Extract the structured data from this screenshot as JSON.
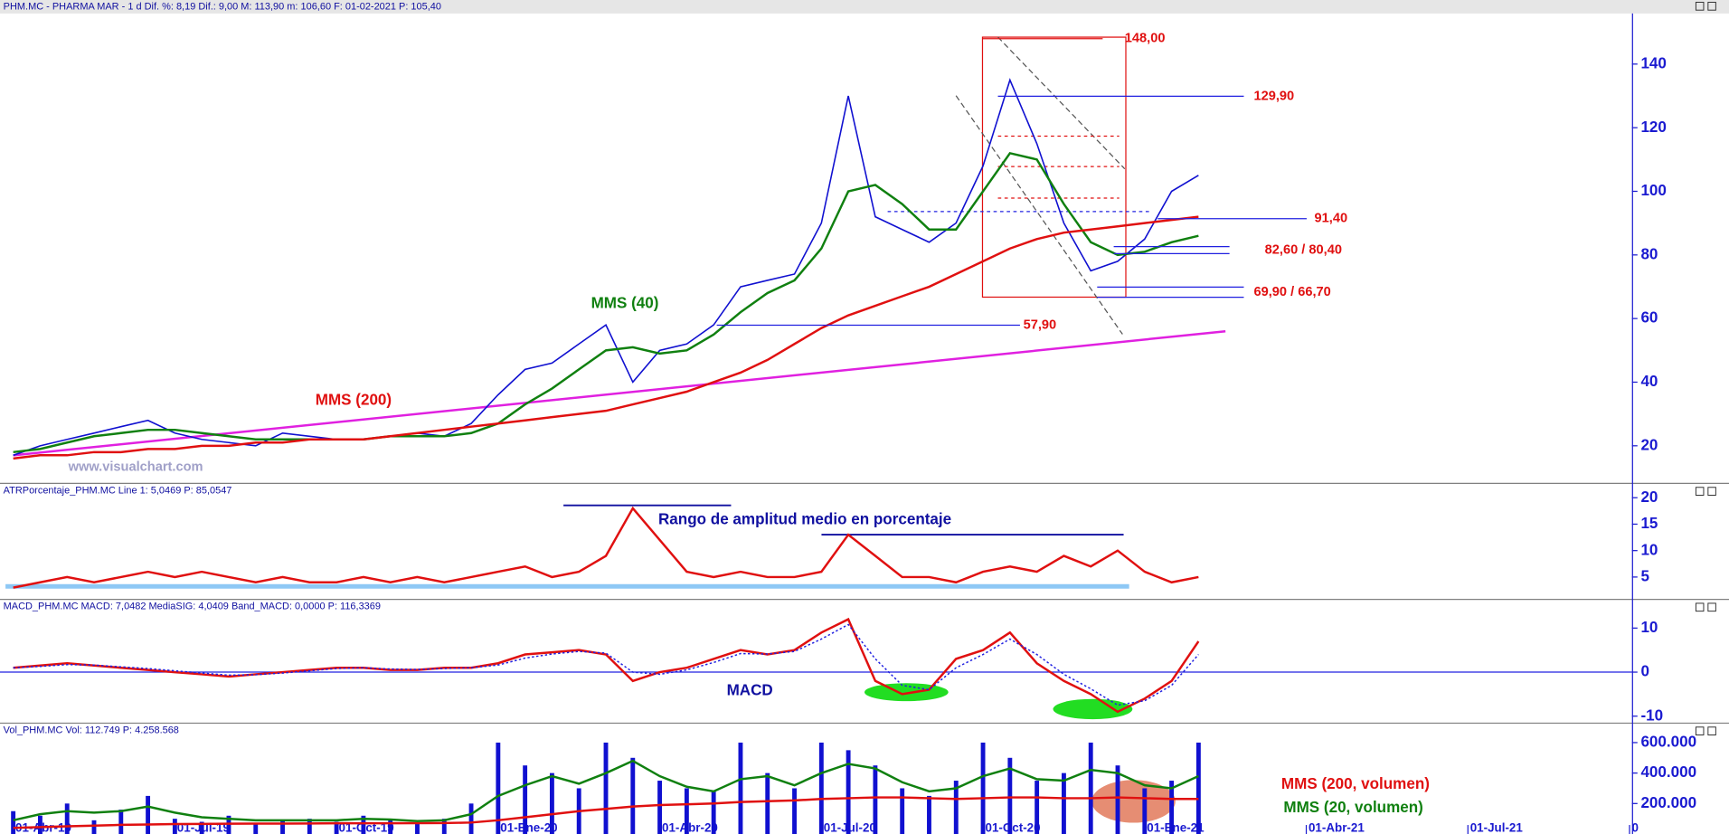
{
  "chart_data": [
    {
      "type": "line",
      "title": "PHM.MC - PHARMA MAR - 1 d Dif. %: 8,19 Dif.: 9,00 M: 113,90 m: 106,60 F: 01-02-2021 P: 105,40",
      "categories": [
        "01-Abr-19",
        null,
        null,
        null,
        null,
        null,
        "01-Jul-19",
        null,
        null,
        null,
        null,
        null,
        "01-Oct-19",
        null,
        null,
        null,
        null,
        null,
        "01-Ene-20",
        null,
        null,
        null,
        null,
        null,
        "01-Abr-20",
        null,
        null,
        null,
        null,
        null,
        "01-Jul-20",
        null,
        null,
        null,
        null,
        null,
        "01-Oct-20",
        null,
        null,
        null,
        null,
        null,
        "01-Ene-21",
        null,
        null,
        null,
        null,
        null,
        "01-Abr-21",
        null,
        null,
        null,
        null,
        null,
        "01-Jul-21",
        null,
        null,
        null,
        null,
        null,
        "0"
      ],
      "ylim": [
        8.7,
        155.9
      ],
      "yticks": [
        20,
        40,
        60,
        80,
        100,
        120,
        140
      ],
      "series": [
        {
          "color": "#1010d0",
          "values": [
            17,
            20,
            22,
            24,
            26,
            28,
            24,
            22,
            21,
            20,
            24,
            23,
            22,
            22,
            23,
            24,
            23,
            27,
            36,
            44,
            46,
            52,
            58,
            40,
            50,
            52,
            58,
            70,
            72,
            74,
            90,
            130,
            92,
            88,
            84,
            90,
            108,
            135,
            115,
            90,
            75,
            78,
            85,
            100,
            105,
            null,
            null,
            null,
            null,
            null,
            null,
            null,
            null,
            null,
            null,
            null,
            null,
            null,
            null,
            null,
            null
          ]
        },
        {
          "name": "MMS (40)",
          "color": "#108010",
          "values": [
            18,
            19,
            21,
            23,
            24,
            25,
            25,
            24,
            23,
            22,
            22,
            22,
            22,
            22,
            23,
            23,
            23,
            24,
            27,
            33,
            38,
            44,
            50,
            51,
            49,
            50,
            55,
            62,
            68,
            72,
            82,
            100,
            102,
            96,
            88,
            88,
            100,
            112,
            110,
            96,
            84,
            80,
            81,
            84,
            86,
            null,
            null,
            null,
            null,
            null,
            null,
            null,
            null,
            null,
            null,
            null,
            null,
            null,
            null,
            null,
            null
          ]
        },
        {
          "name": "MMS (200)",
          "color": "#e01010",
          "values": [
            16,
            17,
            17,
            18,
            18,
            19,
            19,
            20,
            20,
            21,
            21,
            22,
            22,
            22,
            23,
            24,
            25,
            26,
            27,
            28,
            29,
            30,
            31,
            33,
            35,
            37,
            40,
            43,
            47,
            52,
            57,
            61,
            64,
            67,
            70,
            74,
            78,
            82,
            85,
            87,
            88,
            89,
            90,
            91,
            92,
            null,
            null,
            null,
            null,
            null,
            null,
            null,
            null,
            null,
            null,
            null,
            null,
            null,
            null,
            null,
            null
          ]
        }
      ],
      "trendline": {
        "color": "#e020e0",
        "values": [
          17,
          56
        ]
      },
      "levels": [
        {
          "values": [
            148
          ],
          "label": "148,00"
        },
        {
          "values": [
            129.9
          ],
          "label": "129,90"
        },
        {
          "values": [
            91.4
          ],
          "label": "91,40"
        },
        {
          "values": [
            82.6,
            80.4
          ],
          "label": "82,60 / 80,40"
        },
        {
          "values": [
            69.9,
            66.7
          ],
          "label": "69,90 / 66,70"
        },
        {
          "values": [
            57.9
          ],
          "label": "57,90"
        }
      ],
      "watermark": "www.visualchart.com"
    },
    {
      "type": "line",
      "title": "ATRPorcentaje_PHM.MC Line 1: 5,0469 P: 85,0547",
      "annotation": "Rango de amplitud medio en porcentaje",
      "ylim": [
        1.1,
        22.6
      ],
      "yticks": [
        5,
        10,
        15,
        20
      ],
      "series": [
        {
          "color": "#e01010",
          "values": [
            3,
            4,
            5,
            4,
            5,
            6,
            5,
            6,
            5,
            4,
            5,
            4,
            4,
            5,
            4,
            5,
            4,
            5,
            6,
            7,
            5,
            6,
            9,
            18,
            12,
            6,
            5,
            6,
            5,
            5,
            6,
            13,
            9,
            5,
            5,
            4,
            6,
            7,
            6,
            9,
            7,
            10,
            6,
            4,
            5,
            null,
            null,
            null,
            null,
            null,
            null,
            null,
            null,
            null,
            null,
            null,
            null,
            null,
            null,
            null,
            null
          ]
        }
      ]
    },
    {
      "type": "line",
      "title": "MACD_PHM.MC MACD: 7,0482 MediaSIG: 4,0409 Band_MACD: 0,0000 P: 116,3369",
      "annotation": "MACD",
      "ylim": [
        -11.2,
        16.4
      ],
      "yticks": [
        10,
        0,
        -10
      ],
      "baseline": 0,
      "series": [
        {
          "color": "#e01010",
          "values": [
            1,
            1.5,
            2,
            1.5,
            1,
            0.5,
            0,
            -0.5,
            -1,
            -0.5,
            0,
            0.5,
            1,
            1,
            0.5,
            0.5,
            1,
            1,
            2,
            4,
            4.5,
            5,
            4,
            -2,
            0,
            1,
            3,
            5,
            4,
            5,
            9,
            12,
            -2,
            -5,
            -4,
            3,
            5,
            9,
            2,
            -2,
            -5,
            -9,
            -6,
            -2,
            7,
            null,
            null,
            null,
            null,
            null,
            null,
            null,
            null,
            null,
            null,
            null,
            null,
            null,
            null,
            null,
            null
          ]
        },
        {
          "color": "#2020e0",
          "dash": true,
          "values": [
            1,
            1.3,
            1.7,
            1.6,
            1.2,
            0.8,
            0.3,
            -0.2,
            -0.7,
            -0.6,
            -0.2,
            0.3,
            0.8,
            1,
            0.7,
            0.6,
            0.8,
            1,
            1.6,
            3.2,
            4.1,
            4.7,
            4.3,
            0,
            -0.5,
            0.5,
            2.2,
            4.2,
            4.1,
            4.7,
            7.5,
            10.8,
            3,
            -3,
            -4,
            1,
            4,
            7.5,
            4,
            -0.5,
            -3.8,
            -7.5,
            -6.5,
            -3,
            4,
            null,
            null,
            null,
            null,
            null,
            null,
            null,
            null,
            null,
            null,
            null,
            null,
            null,
            null,
            null,
            null
          ]
        }
      ]
    },
    {
      "type": "bar",
      "title": "Vol_PHM.MC Vol: 112.749 P: 4.258.568",
      "ylim": [
        0,
        724000
      ],
      "yticks": [
        {
          "value": 600000,
          "label": "600.000"
        },
        {
          "value": 400000,
          "label": "400.000"
        },
        {
          "value": 200000,
          "label": "200.000"
        }
      ],
      "series": [
        {
          "type": "bar",
          "color": "#1010d0",
          "values": [
            150000,
            120000,
            200000,
            90000,
            160000,
            250000,
            100000,
            80000,
            120000,
            70000,
            90000,
            100000,
            80000,
            120000,
            90000,
            70000,
            100000,
            200000,
            600000,
            450000,
            400000,
            300000,
            600000,
            500000,
            350000,
            300000,
            280000,
            600000,
            400000,
            300000,
            600000,
            550000,
            450000,
            300000,
            250000,
            350000,
            600000,
            500000,
            350000,
            400000,
            600000,
            450000,
            300000,
            350000,
            600000,
            null,
            null,
            null,
            null,
            null,
            null,
            null,
            null,
            null,
            null,
            null,
            null,
            null,
            null,
            null,
            null
          ]
        },
        {
          "type": "line",
          "name": "MMS (200, volumen)",
          "color": "#e01010",
          "values": [
            40000,
            45000,
            50000,
            55000,
            60000,
            62000,
            65000,
            66000,
            67000,
            68000,
            68000,
            69000,
            70000,
            70000,
            70000,
            71000,
            72000,
            75000,
            90000,
            110000,
            130000,
            150000,
            165000,
            180000,
            190000,
            195000,
            200000,
            210000,
            215000,
            220000,
            230000,
            235000,
            240000,
            240000,
            235000,
            230000,
            235000,
            240000,
            240000,
            235000,
            235000,
            240000,
            235000,
            230000,
            230000,
            null,
            null,
            null,
            null,
            null,
            null,
            null,
            null,
            null,
            null,
            null,
            null,
            null,
            null,
            null,
            null
          ]
        },
        {
          "type": "line",
          "name": "MMS (20, volumen)",
          "color": "#108010",
          "values": [
            90000,
            130000,
            150000,
            140000,
            150000,
            180000,
            140000,
            110000,
            100000,
            90000,
            90000,
            90000,
            90000,
            100000,
            95000,
            85000,
            90000,
            130000,
            250000,
            320000,
            380000,
            330000,
            400000,
            480000,
            380000,
            310000,
            280000,
            360000,
            380000,
            320000,
            400000,
            460000,
            430000,
            340000,
            280000,
            300000,
            380000,
            430000,
            360000,
            350000,
            420000,
            400000,
            320000,
            300000,
            380000,
            null,
            null,
            null,
            null,
            null,
            null,
            null,
            null,
            null,
            null,
            null,
            null,
            null,
            null,
            null,
            null
          ]
        }
      ]
    }
  ]
}
